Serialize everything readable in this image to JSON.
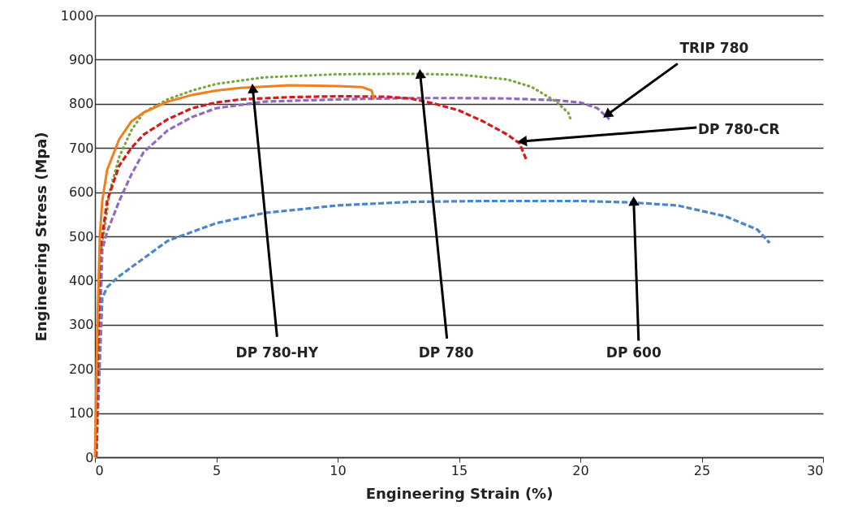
{
  "chart_data": {
    "type": "line",
    "xlabel": "Engineering Strain (%)",
    "ylabel": "Engineering Stress (Mpa)",
    "xlim": [
      0,
      30
    ],
    "ylim": [
      0,
      1000
    ],
    "xticks": [
      0,
      5,
      10,
      15,
      20,
      25,
      30
    ],
    "yticks": [
      0,
      100,
      200,
      300,
      400,
      500,
      600,
      700,
      800,
      900,
      1000
    ],
    "grid": "y",
    "series": [
      {
        "color": "#4a86c8",
        "line_style": "dashed",
        "x": [
          0.05,
          0.3,
          0.5,
          1,
          2,
          3,
          5,
          7,
          10,
          13,
          16,
          20,
          22,
          24,
          26,
          27.3,
          27.8
        ],
        "values": [
          0,
          360,
          385,
          410,
          450,
          490,
          530,
          553,
          570,
          578,
          580,
          580,
          577,
          570,
          545,
          515,
          485
        ]
      },
      {
        "color": "#8e6bbf",
        "line_style": "dashed",
        "x": [
          0.05,
          0.3,
          0.5,
          1,
          1.5,
          2,
          3,
          4,
          5,
          7,
          10,
          13,
          15,
          17,
          19,
          20,
          20.7,
          21.2
        ],
        "values": [
          0,
          470,
          510,
          580,
          640,
          690,
          740,
          770,
          790,
          805,
          810,
          813,
          813,
          812,
          808,
          803,
          790,
          765
        ]
      },
      {
        "color": "#7aa63a",
        "line_style": "dotted",
        "x": [
          0.05,
          0.2,
          0.4,
          0.6,
          1,
          1.5,
          2,
          3,
          4,
          5,
          7,
          10,
          13,
          15,
          17,
          18,
          19,
          19.5,
          19.6
        ],
        "values": [
          0,
          450,
          520,
          600,
          680,
          740,
          780,
          810,
          830,
          845,
          860,
          867,
          868,
          866,
          855,
          838,
          805,
          780,
          765
        ]
      },
      {
        "color": "#d7191c",
        "line_style": "dashed",
        "x": [
          0.05,
          0.2,
          0.3,
          0.5,
          1,
          1.5,
          2,
          3,
          4,
          5,
          6,
          8,
          10,
          12,
          13,
          14,
          15,
          16,
          17,
          17.5,
          17.8
        ],
        "values": [
          0,
          460,
          500,
          580,
          660,
          700,
          730,
          765,
          790,
          803,
          810,
          815,
          817,
          816,
          812,
          800,
          785,
          760,
          730,
          710,
          670
        ]
      },
      {
        "color": "#f07f1f",
        "line_style": "solid",
        "x": [
          0,
          0.1,
          0.2,
          0.3,
          0.5,
          1,
          1.5,
          2,
          3,
          4,
          5,
          6,
          8,
          10,
          11,
          11.4,
          11.5
        ],
        "values": [
          0,
          300,
          500,
          580,
          650,
          720,
          760,
          780,
          805,
          820,
          830,
          836,
          842,
          840,
          838,
          830,
          810
        ]
      }
    ],
    "annotations": [
      {
        "text": "DP 780-HY",
        "x": 6.5,
        "y": 835
      },
      {
        "text": "DP 780",
        "x": 13.4,
        "y": 868
      },
      {
        "text": "DP 600",
        "x": 22.2,
        "y": 580
      },
      {
        "text": "TRIP 780",
        "x": 21.1,
        "y": 775
      },
      {
        "text": "DP 780-CR",
        "x": 17.6,
        "y": 715
      }
    ]
  }
}
